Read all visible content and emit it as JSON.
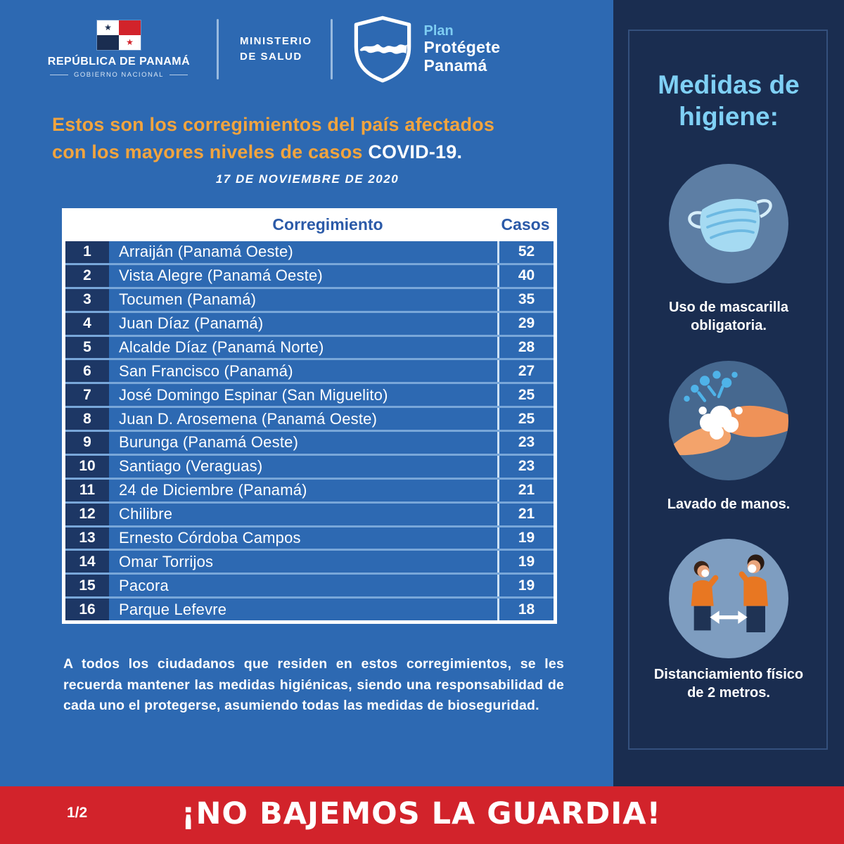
{
  "header": {
    "republic": {
      "title": "REPÚBLICA DE PANAMÁ",
      "subtitle": "GOBIERNO NACIONAL"
    },
    "ministry": {
      "line1": "MINISTERIO",
      "line2": "DE SALUD"
    },
    "plan": {
      "word1": "Plan",
      "word2": "Protégete",
      "word3": "Panamá"
    }
  },
  "main": {
    "title_line1": "Estos son los corregimientos del país afectados",
    "title_line2": "con los mayores niveles de casos",
    "title_highlight": "COVID-19.",
    "date": "17  DE NOVIEMBRE DE 2020",
    "table": {
      "headers": {
        "corregimiento": "Corregimiento",
        "casos": "Casos"
      },
      "rows": [
        {
          "rank": "1",
          "name": "Arraiján (Panamá Oeste)",
          "cases": "52"
        },
        {
          "rank": "2",
          "name": "Vista Alegre (Panamá Oeste)",
          "cases": "40"
        },
        {
          "rank": "3",
          "name": "Tocumen (Panamá)",
          "cases": "35"
        },
        {
          "rank": "4",
          "name": "Juan Díaz (Panamá)",
          "cases": "29"
        },
        {
          "rank": "5",
          "name": "Alcalde Díaz (Panamá Norte)",
          "cases": "28"
        },
        {
          "rank": "6",
          "name": "San Francisco (Panamá)",
          "cases": "27"
        },
        {
          "rank": "7",
          "name": "José Domingo Espinar (San Miguelito)",
          "cases": "25"
        },
        {
          "rank": "8",
          "name": "Juan D. Arosemena (Panamá Oeste)",
          "cases": "25"
        },
        {
          "rank": "9",
          "name": "Burunga (Panamá Oeste)",
          "cases": "23"
        },
        {
          "rank": "10",
          "name": "Santiago (Veraguas)",
          "cases": "23"
        },
        {
          "rank": "11",
          "name": "24 de Diciembre (Panamá)",
          "cases": "21"
        },
        {
          "rank": "12",
          "name": "Chilibre",
          "cases": "21"
        },
        {
          "rank": "13",
          "name": "Ernesto Córdoba Campos",
          "cases": "19"
        },
        {
          "rank": "14",
          "name": "Omar Torrijos",
          "cases": "19"
        },
        {
          "rank": "15",
          "name": "Pacora",
          "cases": "19"
        },
        {
          "rank": "16",
          "name": "Parque Lefevre",
          "cases": "18"
        }
      ]
    },
    "footer_note": "A todos los ciudadanos que residen en estos corregimientos, se les recuerda mantener las medidas higiénicas, siendo una responsabilidad de cada uno el protegerse, asumiendo todas las medidas de bioseguridad."
  },
  "sidebar": {
    "title": "Medidas de higiene:",
    "items": [
      {
        "icon": "face-mask-icon",
        "label": "Uso de mascarilla obligatoria."
      },
      {
        "icon": "hand-washing-icon",
        "label": "Lavado de manos."
      },
      {
        "icon": "physical-distancing-icon",
        "label": "Distanciamiento físico de 2 metros."
      }
    ]
  },
  "footer": {
    "page_indicator": "1/2",
    "slogan": "¡NO BAJEMOS LA GUARDIA!"
  },
  "colors": {
    "background_blue": "#2d69b2",
    "panel_navy": "#1a2d50",
    "rank_navy": "#1d3765",
    "row_separator_blue": "#79a7d9",
    "accent_orange": "#f2a43e",
    "accent_light_blue": "#7fd0f5",
    "banner_red": "#d2232b",
    "table_header_blue": "#2b5aa8"
  }
}
